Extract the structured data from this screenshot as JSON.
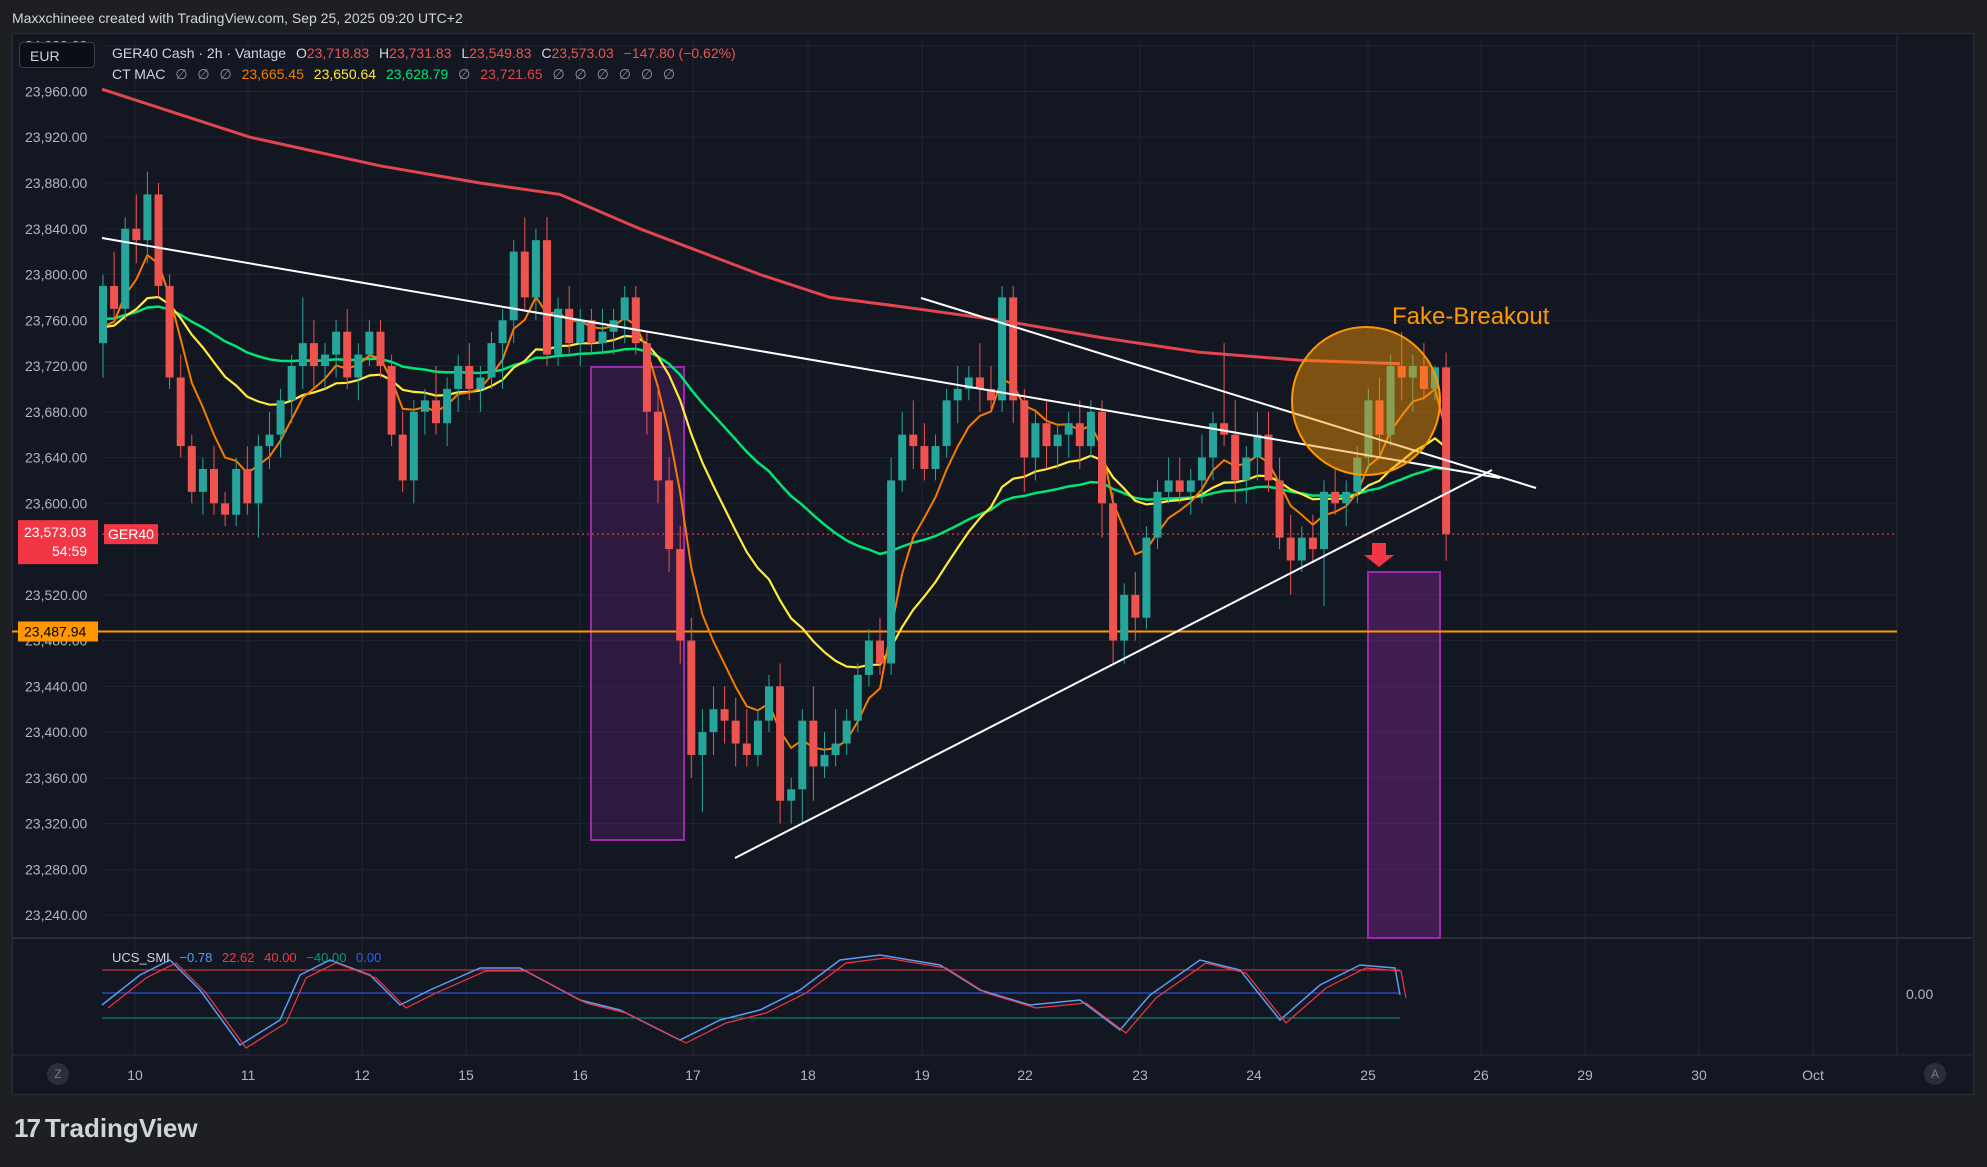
{
  "header": {
    "attribution": "Maxxchineee created with TradingView.com, Sep 25, 2025 09:20 UTC+2"
  },
  "currency_button": "EUR",
  "legend": {
    "symbol": "GER40 Cash · 2h · Vantage",
    "o_label": "O",
    "o_value": "23,718.83",
    "h_label": "H",
    "h_value": "23,731.83",
    "l_label": "L",
    "l_value": "23,549.83",
    "c_label": "C",
    "c_value": "23,573.03",
    "change": "−147.80 (−0.62%)",
    "indicator_name": "CT MAC",
    "ind_empty": "∅",
    "ind_v1": "23,665.45",
    "ind_v2": "23,650.64",
    "ind_v3": "23,628.79",
    "ind_v4": "23,721.65"
  },
  "oscillator_legend": {
    "name": "UCS_SMI",
    "v1": "−0.78",
    "v2": "22.62",
    "v3": "40.00",
    "v4": "−40.00",
    "v5": "0.00"
  },
  "price_axis": {
    "labels": [
      "24,000.00",
      "23,960.00",
      "23,920.00",
      "23,880.00",
      "23,840.00",
      "23,800.00",
      "23,760.00",
      "23,720.00",
      "23,680.00",
      "23,640.00",
      "23,600.00",
      "23,520.00",
      "23,480.00",
      "23,440.00",
      "23,400.00",
      "23,360.00",
      "23,320.00",
      "23,280.00",
      "23,240.00"
    ],
    "current_price_label": "23,573.03",
    "countdown_label": "54:59",
    "symbol_tag": "GER40",
    "horizontal_level_label": "23,487.94",
    "oscillator_zero_label": "0.00"
  },
  "time_axis": {
    "labels": [
      "10",
      "11",
      "12",
      "15",
      "16",
      "17",
      "18",
      "19",
      "22",
      "23",
      "24",
      "25",
      "26",
      "29",
      "30",
      "Oct"
    ]
  },
  "annotations": {
    "fake_breakout": "Fake-Breakout"
  },
  "brand": {
    "name": "TradingView",
    "logo_glyph": "17"
  },
  "axis_buttons": {
    "left": "Z",
    "right": "A"
  },
  "colors": {
    "background": "#131722",
    "bull": "#26a69a",
    "bear": "#ef5350",
    "ma_orange": "#f57c00",
    "ma_yellow": "#ffeb3b",
    "ma_green": "#00e676",
    "ma_red": "#e04650",
    "level": "#ff9800",
    "box": "#9c27b0",
    "trendline": "#ffffff"
  },
  "chart_data": {
    "type": "candlestick",
    "symbol": "GER40 Cash",
    "timeframe": "2h",
    "y_range": [
      23220,
      24005
    ],
    "current_price": 23573.03,
    "horizontal_level": 23487.94,
    "x_tick_labels": [
      "10",
      "11",
      "12",
      "15",
      "16",
      "17",
      "18",
      "19",
      "22",
      "23",
      "24",
      "25",
      "26",
      "29",
      "30",
      "Oct"
    ],
    "candles": [
      [
        23740,
        23800,
        23710,
        23790
      ],
      [
        23790,
        23820,
        23760,
        23770
      ],
      [
        23770,
        23850,
        23760,
        23840
      ],
      [
        23840,
        23870,
        23810,
        23830
      ],
      [
        23830,
        23890,
        23810,
        23870
      ],
      [
        23870,
        23880,
        23780,
        23790
      ],
      [
        23790,
        23800,
        23700,
        23710
      ],
      [
        23710,
        23730,
        23640,
        23650
      ],
      [
        23650,
        23660,
        23600,
        23610
      ],
      [
        23610,
        23640,
        23590,
        23630
      ],
      [
        23630,
        23650,
        23590,
        23600
      ],
      [
        23600,
        23610,
        23580,
        23590
      ],
      [
        23590,
        23640,
        23580,
        23630
      ],
      [
        23630,
        23650,
        23590,
        23600
      ],
      [
        23600,
        23660,
        23570,
        23650
      ],
      [
        23650,
        23680,
        23630,
        23660
      ],
      [
        23660,
        23700,
        23640,
        23690
      ],
      [
        23690,
        23730,
        23670,
        23720
      ],
      [
        23720,
        23780,
        23700,
        23740
      ],
      [
        23740,
        23760,
        23700,
        23720
      ],
      [
        23720,
        23740,
        23700,
        23730
      ],
      [
        23730,
        23760,
        23710,
        23750
      ],
      [
        23750,
        23770,
        23700,
        23710
      ],
      [
        23710,
        23740,
        23690,
        23730
      ],
      [
        23730,
        23760,
        23720,
        23750
      ],
      [
        23750,
        23760,
        23710,
        23720
      ],
      [
        23720,
        23730,
        23650,
        23660
      ],
      [
        23660,
        23680,
        23610,
        23620
      ],
      [
        23620,
        23690,
        23600,
        23680
      ],
      [
        23680,
        23700,
        23660,
        23690
      ],
      [
        23690,
        23720,
        23660,
        23670
      ],
      [
        23670,
        23710,
        23650,
        23700
      ],
      [
        23700,
        23730,
        23680,
        23720
      ],
      [
        23720,
        23740,
        23690,
        23700
      ],
      [
        23700,
        23720,
        23680,
        23710
      ],
      [
        23710,
        23750,
        23700,
        23740
      ],
      [
        23740,
        23770,
        23700,
        23760
      ],
      [
        23760,
        23830,
        23740,
        23820
      ],
      [
        23820,
        23850,
        23770,
        23780
      ],
      [
        23780,
        23840,
        23760,
        23830
      ],
      [
        23830,
        23850,
        23720,
        23730
      ],
      [
        23730,
        23780,
        23720,
        23770
      ],
      [
        23770,
        23790,
        23730,
        23740
      ],
      [
        23740,
        23770,
        23720,
        23760
      ],
      [
        23760,
        23770,
        23730,
        23740
      ],
      [
        23740,
        23770,
        23730,
        23750
      ],
      [
        23750,
        23770,
        23730,
        23760
      ],
      [
        23760,
        23790,
        23740,
        23780
      ],
      [
        23780,
        23790,
        23730,
        23740
      ],
      [
        23740,
        23750,
        23660,
        23680
      ],
      [
        23680,
        23700,
        23600,
        23620
      ],
      [
        23620,
        23640,
        23540,
        23560
      ],
      [
        23560,
        23580,
        23460,
        23480
      ],
      [
        23480,
        23500,
        23360,
        23380
      ],
      [
        23380,
        23420,
        23330,
        23400
      ],
      [
        23400,
        23440,
        23380,
        23420
      ],
      [
        23420,
        23440,
        23390,
        23410
      ],
      [
        23410,
        23430,
        23370,
        23390
      ],
      [
        23390,
        23420,
        23370,
        23380
      ],
      [
        23380,
        23420,
        23370,
        23410
      ],
      [
        23410,
        23450,
        23400,
        23440
      ],
      [
        23440,
        23460,
        23320,
        23340
      ],
      [
        23340,
        23360,
        23320,
        23350
      ],
      [
        23350,
        23420,
        23320,
        23410
      ],
      [
        23410,
        23440,
        23340,
        23370
      ],
      [
        23370,
        23400,
        23360,
        23380
      ],
      [
        23380,
        23420,
        23370,
        23390
      ],
      [
        23390,
        23420,
        23380,
        23410
      ],
      [
        23410,
        23460,
        23400,
        23450
      ],
      [
        23450,
        23490,
        23440,
        23480
      ],
      [
        23480,
        23500,
        23450,
        23460
      ],
      [
        23460,
        23640,
        23450,
        23620
      ],
      [
        23620,
        23680,
        23610,
        23660
      ],
      [
        23660,
        23690,
        23630,
        23650
      ],
      [
        23650,
        23670,
        23620,
        23630
      ],
      [
        23630,
        23660,
        23620,
        23650
      ],
      [
        23650,
        23700,
        23640,
        23690
      ],
      [
        23690,
        23720,
        23670,
        23700
      ],
      [
        23700,
        23720,
        23690,
        23710
      ],
      [
        23710,
        23740,
        23680,
        23700
      ],
      [
        23700,
        23720,
        23680,
        23690
      ],
      [
        23690,
        23790,
        23680,
        23780
      ],
      [
        23780,
        23790,
        23670,
        23690
      ],
      [
        23690,
        23700,
        23610,
        23640
      ],
      [
        23640,
        23680,
        23620,
        23670
      ],
      [
        23670,
        23690,
        23630,
        23650
      ],
      [
        23650,
        23670,
        23630,
        23660
      ],
      [
        23660,
        23680,
        23640,
        23670
      ],
      [
        23670,
        23690,
        23630,
        23650
      ],
      [
        23650,
        23690,
        23640,
        23680
      ],
      [
        23680,
        23690,
        23570,
        23600
      ],
      [
        23600,
        23610,
        23460,
        23480
      ],
      [
        23480,
        23530,
        23460,
        23520
      ],
      [
        23520,
        23540,
        23480,
        23500
      ],
      [
        23500,
        23580,
        23490,
        23570
      ],
      [
        23570,
        23620,
        23560,
        23610
      ],
      [
        23610,
        23640,
        23600,
        23620
      ],
      [
        23620,
        23640,
        23600,
        23610
      ],
      [
        23610,
        23630,
        23590,
        23620
      ],
      [
        23620,
        23660,
        23600,
        23640
      ],
      [
        23640,
        23680,
        23620,
        23670
      ],
      [
        23670,
        23740,
        23650,
        23660
      ],
      [
        23660,
        23690,
        23600,
        23620
      ],
      [
        23620,
        23650,
        23600,
        23640
      ],
      [
        23640,
        23680,
        23620,
        23660
      ],
      [
        23660,
        23680,
        23610,
        23620
      ],
      [
        23620,
        23640,
        23560,
        23570
      ],
      [
        23570,
        23590,
        23520,
        23550
      ],
      [
        23550,
        23580,
        23540,
        23570
      ],
      [
        23570,
        23590,
        23550,
        23560
      ],
      [
        23560,
        23620,
        23510,
        23610
      ],
      [
        23610,
        23630,
        23590,
        23600
      ],
      [
        23600,
        23620,
        23580,
        23610
      ],
      [
        23610,
        23650,
        23600,
        23640
      ],
      [
        23640,
        23700,
        23630,
        23690
      ],
      [
        23690,
        23710,
        23640,
        23660
      ],
      [
        23660,
        23730,
        23650,
        23720
      ],
      [
        23720,
        23750,
        23690,
        23710
      ],
      [
        23710,
        23730,
        23680,
        23720
      ],
      [
        23720,
        23740,
        23690,
        23700
      ],
      [
        23700,
        23720,
        23690,
        23718.83
      ],
      [
        23718.83,
        23731.83,
        23549.83,
        23573.03
      ]
    ]
  }
}
